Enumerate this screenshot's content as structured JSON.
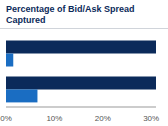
{
  "chart_data": {
    "type": "bar",
    "title": "Percentage of Bid/Ask Spread Captured",
    "orientation": "horizontal",
    "categories": [
      null,
      null
    ],
    "series": [
      {
        "color": "#0b2a5a",
        "values": [
          31,
          31
        ]
      },
      {
        "color": "#1a6dc2",
        "values": [
          1.5,
          6.5
        ]
      }
    ],
    "xlim": [
      0,
      31
    ],
    "xticks": [
      {
        "value": 0,
        "label": "0%"
      },
      {
        "value": 10,
        "label": "10%"
      },
      {
        "value": 20,
        "label": "20%"
      },
      {
        "value": 30,
        "label": "30%"
      }
    ]
  }
}
